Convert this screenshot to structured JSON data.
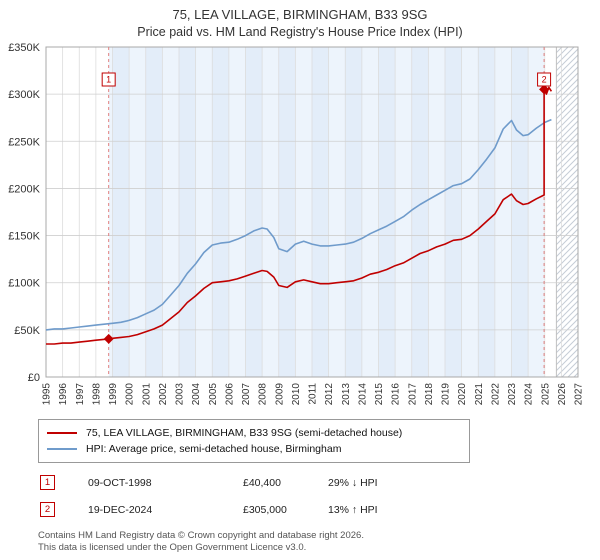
{
  "title": {
    "line1": "75, LEA VILLAGE, BIRMINGHAM, B33 9SG",
    "line2": "Price paid vs. HM Land Registry's House Price Index (HPI)"
  },
  "chart_data": {
    "type": "line",
    "x_range": [
      1995,
      2027
    ],
    "y_range_k": [
      0,
      350
    ],
    "y_unit": "GBP thousands",
    "y_tick_values": [
      0,
      50,
      100,
      150,
      200,
      250,
      300,
      350
    ],
    "y_tick_labels": [
      "£0",
      "£50K",
      "£100K",
      "£150K",
      "£200K",
      "£250K",
      "£300K",
      "£350K"
    ],
    "x_ticks": [
      1995,
      1996,
      1997,
      1998,
      1999,
      2000,
      2001,
      2002,
      2003,
      2004,
      2005,
      2006,
      2007,
      2008,
      2009,
      2010,
      2011,
      2012,
      2013,
      2014,
      2015,
      2016,
      2017,
      2018,
      2019,
      2020,
      2021,
      2022,
      2023,
      2024,
      2025,
      2026,
      2027
    ],
    "series": [
      {
        "name": "75, LEA VILLAGE, BIRMINGHAM, B33 9SG (semi-detached house)",
        "color": "#c00000",
        "x": [
          1995,
          1995.5,
          1996,
          1996.5,
          1997,
          1997.5,
          1998,
          1998.77,
          1999,
          1999.5,
          2000,
          2000.5,
          2001,
          2001.5,
          2002,
          2002.5,
          2003,
          2003.5,
          2004,
          2004.5,
          2005,
          2005.5,
          2006,
          2006.5,
          2007,
          2007.5,
          2008,
          2008.3,
          2008.7,
          2009,
          2009.5,
          2010,
          2010.5,
          2011,
          2011.5,
          2012,
          2012.5,
          2013,
          2013.5,
          2014,
          2014.5,
          2015,
          2015.5,
          2016,
          2016.5,
          2017,
          2017.5,
          2018,
          2018.5,
          2019,
          2019.5,
          2020,
          2020.5,
          2021,
          2021.5,
          2022,
          2022.5,
          2023,
          2023.3,
          2023.7,
          2024,
          2024.5,
          2024.96,
          2024.96,
          2025.1,
          2025.25,
          2025.4
        ],
        "values_k": [
          35,
          35,
          36,
          36,
          37,
          38,
          39,
          40.4,
          41,
          42,
          43,
          45,
          48,
          51,
          55,
          62,
          69,
          79,
          86,
          94,
          100,
          101,
          102,
          104,
          107,
          110,
          113,
          112,
          106,
          97,
          95,
          101,
          103,
          101,
          99,
          99,
          100,
          101,
          102,
          105,
          109,
          111,
          114,
          118,
          121,
          126,
          131,
          134,
          138,
          141,
          145,
          146,
          150,
          157,
          165,
          173,
          188,
          194,
          187,
          183,
          184,
          189,
          193,
          305,
          300,
          307,
          303
        ]
      },
      {
        "name": "HPI: Average price, semi-detached house, Birmingham",
        "color": "#6f9bcb",
        "x": [
          1995,
          1995.5,
          1996,
          1996.5,
          1997,
          1997.5,
          1998,
          1998.5,
          1999,
          1999.5,
          2000,
          2000.5,
          2001,
          2001.5,
          2002,
          2002.5,
          2003,
          2003.5,
          2004,
          2004.5,
          2005,
          2005.5,
          2006,
          2006.5,
          2007,
          2007.5,
          2008,
          2008.3,
          2008.7,
          2009,
          2009.5,
          2010,
          2010.5,
          2011,
          2011.5,
          2012,
          2012.5,
          2013,
          2013.5,
          2014,
          2014.5,
          2015,
          2015.5,
          2016,
          2016.5,
          2017,
          2017.5,
          2018,
          2018.5,
          2019,
          2019.5,
          2020,
          2020.5,
          2021,
          2021.5,
          2022,
          2022.5,
          2023,
          2023.3,
          2023.7,
          2024,
          2024.5,
          2025,
          2025.4
        ],
        "values_k": [
          50,
          51,
          51,
          52,
          53,
          54,
          55,
          56,
          57,
          58,
          60,
          63,
          67,
          71,
          77,
          87,
          97,
          110,
          120,
          132,
          140,
          142,
          143,
          146,
          150,
          155,
          158,
          157,
          148,
          136,
          133,
          141,
          144,
          141,
          139,
          139,
          140,
          141,
          143,
          147,
          152,
          156,
          160,
          165,
          170,
          177,
          183,
          188,
          193,
          198,
          203,
          205,
          210,
          220,
          231,
          243,
          263,
          272,
          262,
          256,
          257,
          264,
          270,
          273
        ]
      }
    ],
    "events": [
      {
        "n": "1",
        "x": 1998.77,
        "value_k": 40.4
      },
      {
        "n": "2",
        "x": 2024.96,
        "value_k": 305
      }
    ],
    "owned_band": [
      1998.77,
      2024.96
    ],
    "band_colors": [
      "#edf4fc",
      "#e3edf9"
    ],
    "hatch_from": 2025.7,
    "hatch_color": "#c5ccd6",
    "event_line_color": "#e08080",
    "grid_v_color": "#dcdcdc",
    "grid_h_color": "#cfcfcf",
    "axis_box_color": "#a8a8a8"
  },
  "legend": {
    "rows": [
      {
        "label": "75, LEA VILLAGE, BIRMINGHAM, B33 9SG (semi-detached house)"
      },
      {
        "label": "HPI: Average price, semi-detached house, Birmingham"
      }
    ]
  },
  "annotations": [
    {
      "n": "1",
      "date": "09-OCT-1998",
      "price": "£40,400",
      "hpi": "29% ↓ HPI"
    },
    {
      "n": "2",
      "date": "19-DEC-2024",
      "price": "£305,000",
      "hpi": "13% ↑ HPI"
    }
  ],
  "footer": {
    "line1": "Contains HM Land Registry data © Crown copyright and database right 2026.",
    "line2": "This data is licensed under the Open Government Licence v3.0."
  }
}
